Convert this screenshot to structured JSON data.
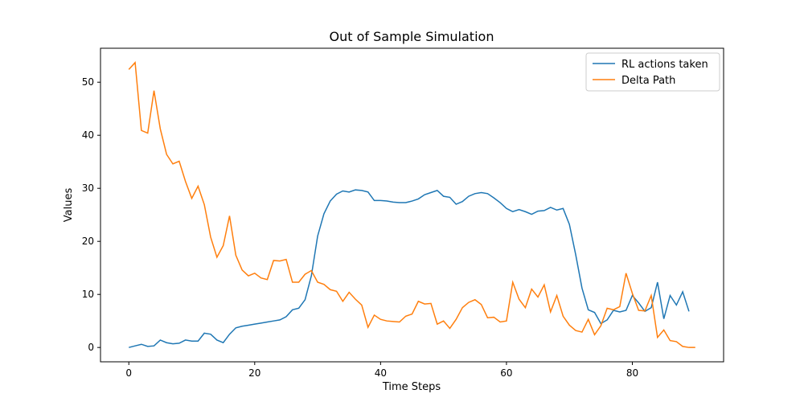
{
  "chart_data": {
    "type": "line",
    "title": "Out of Sample Simulation",
    "x_label": "Time Steps",
    "y_label": "Values",
    "x": [
      0,
      1,
      2,
      3,
      4,
      5,
      6,
      7,
      8,
      9,
      10,
      11,
      12,
      13,
      14,
      15,
      16,
      17,
      18,
      19,
      20,
      21,
      22,
      23,
      24,
      25,
      26,
      27,
      28,
      29,
      30,
      31,
      32,
      33,
      34,
      35,
      36,
      37,
      38,
      39,
      40,
      41,
      42,
      43,
      44,
      45,
      46,
      47,
      48,
      49,
      50,
      51,
      52,
      53,
      54,
      55,
      56,
      57,
      58,
      59,
      60,
      61,
      62,
      63,
      64,
      65,
      66,
      67,
      68,
      69,
      70,
      71,
      72,
      73,
      74,
      75,
      76,
      77,
      78,
      79,
      80,
      81,
      82,
      83,
      84,
      85,
      86,
      87,
      88,
      89,
      90
    ],
    "series": [
      {
        "name": "RL actions taken",
        "color": "#1f77b4",
        "values": [
          0,
          0.3,
          0.6,
          0.2,
          0.3,
          1.4,
          0.9,
          0.7,
          0.8,
          1.4,
          1.2,
          1.2,
          2.7,
          2.5,
          1.4,
          0.9,
          2.5,
          3.7,
          4.0,
          4.2,
          4.4,
          4.6,
          4.8,
          5.0,
          5.2,
          5.8,
          7.1,
          7.4,
          9.0,
          13.5,
          21,
          25.2,
          27.6,
          28.9,
          29.5,
          29.3,
          29.7,
          29.6,
          29.3,
          27.7,
          27.7,
          27.6,
          27.4,
          27.3,
          27.3,
          27.6,
          28.0,
          28.8,
          29.2,
          29.6,
          28.5,
          28.3,
          27.0,
          27.5,
          28.5,
          29.0,
          29.2,
          29.0,
          28.2,
          27.3,
          26.2,
          25.6,
          26.0,
          25.6,
          25.1,
          25.7,
          25.8,
          26.4,
          25.9,
          26.2,
          23.2,
          17.5,
          11.2,
          7.1,
          6.6,
          4.5,
          5.2,
          7.0,
          6.7,
          7.0,
          9.8,
          8.4,
          6.8,
          7.5,
          12.3,
          5.4,
          9.8,
          8.0,
          10.5,
          6.8,
          null
        ]
      },
      {
        "name": "Delta Path",
        "color": "#ff7f0e",
        "values": [
          52.4,
          53.7,
          40.9,
          40.4,
          48.4,
          41.2,
          36.4,
          34.6,
          35.1,
          31.3,
          28.1,
          30.4,
          26.9,
          20.8,
          17.0,
          19.2,
          24.8,
          17.4,
          14.6,
          13.5,
          14.0,
          13.1,
          12.8,
          16.4,
          16.3,
          16.6,
          12.3,
          12.3,
          13.8,
          14.5,
          12.3,
          11.9,
          10.9,
          10.6,
          8.7,
          10.4,
          9.1,
          8.0,
          3.8,
          6.1,
          5.3,
          5.0,
          4.9,
          4.8,
          5.9,
          6.3,
          8.7,
          8.2,
          8.3,
          4.4,
          5.0,
          3.6,
          5.3,
          7.5,
          8.5,
          9.0,
          8.1,
          5.6,
          5.7,
          4.8,
          5.0,
          12.3,
          9.1,
          7.5,
          11.0,
          9.5,
          11.8,
          6.7,
          9.8,
          5.9,
          4.2,
          3.2,
          2.9,
          5.3,
          2.4,
          4.1,
          7.4,
          7.1,
          7.7,
          14.0,
          10.2,
          7.0,
          6.9,
          9.8,
          1.9,
          3.3,
          1.3,
          1.1,
          0.2,
          0.0,
          0.0
        ]
      }
    ],
    "xlim": [
      -4.5,
      94.5
    ],
    "ylim": [
      -2.7,
      56.4
    ],
    "xticks": [
      0,
      20,
      40,
      60,
      80
    ],
    "yticks": [
      0,
      10,
      20,
      30,
      40,
      50
    ],
    "legend": "upper right"
  }
}
